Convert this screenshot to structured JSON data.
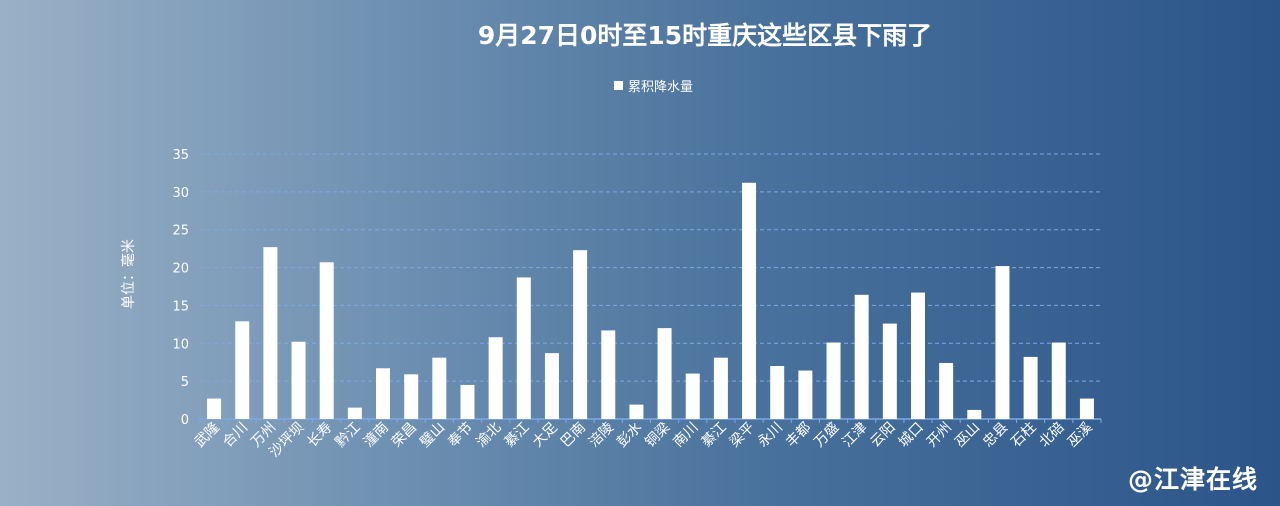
{
  "chart_data": {
    "type": "bar",
    "title": "9月27日0时至15时重庆这些区县下雨了",
    "ylabel": "单位：毫米",
    "ylim": [
      0,
      35
    ],
    "yticks": [
      0,
      5,
      10,
      15,
      20,
      25,
      30,
      35
    ],
    "grid": true,
    "legend_position": "top-center",
    "categories": [
      "武隆",
      "合川",
      "万州",
      "沙坪坝",
      "长寿",
      "黔江",
      "潼南",
      "荣昌",
      "璧山",
      "奉节",
      "渝北",
      "綦江",
      "大足",
      "巴南",
      "涪陵",
      "彭水",
      "铜梁",
      "南川",
      "綦江",
      "梁平",
      "永川",
      "丰都",
      "万盛",
      "江津",
      "云阳",
      "城口",
      "开州",
      "巫山",
      "忠县",
      "石柱",
      "北碚",
      "巫溪"
    ],
    "series": [
      {
        "name": "累积降水量",
        "values": [
          2.7,
          12.9,
          22.7,
          10.2,
          20.7,
          1.5,
          6.7,
          5.9,
          8.1,
          4.5,
          10.8,
          18.7,
          8.7,
          22.3,
          11.7,
          1.9,
          12.0,
          6.0,
          8.1,
          31.2,
          7.0,
          6.4,
          10.1,
          16.4,
          12.6,
          16.7,
          7.4,
          1.2,
          20.2,
          8.2,
          10.1,
          2.7
        ]
      }
    ],
    "colors": {
      "bar": "#ffffff",
      "grid": "#7fa8e6",
      "axis": "#7fa8e6",
      "text": "#ffffff"
    }
  },
  "watermark": "@江津在线"
}
